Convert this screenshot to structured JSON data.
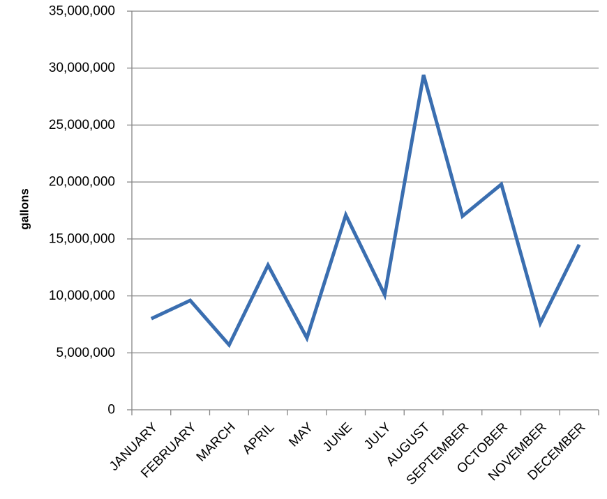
{
  "chart_data": {
    "type": "line",
    "title": "",
    "xlabel": "",
    "ylabel": "gallons",
    "categories": [
      "JANUARY",
      "FEBRUARY",
      "MARCH",
      "APRIL",
      "MAY",
      "JUNE",
      "JULY",
      "AUGUST",
      "SEPTEMBER",
      "OCTOBER",
      "NOVEMBER",
      "DECEMBER"
    ],
    "series": [
      {
        "values": [
          8000000,
          9600000,
          5700000,
          12700000,
          6300000,
          17100000,
          10100000,
          29400000,
          17000000,
          19800000,
          7600000,
          14500000
        ],
        "color": "#3A6EB0"
      }
    ],
    "ylim": [
      0,
      35000000
    ],
    "yticks": [
      0,
      5000000,
      10000000,
      15000000,
      20000000,
      25000000,
      30000000,
      35000000
    ],
    "ytick_labels": [
      "0",
      "5,000,000",
      "10,000,000",
      "15,000,000",
      "20,000,000",
      "25,000,000",
      "30,000,000",
      "35,000,000"
    ],
    "grid": true,
    "gridline_color": "#868686",
    "axis_color": "#868686",
    "legend": "none"
  }
}
